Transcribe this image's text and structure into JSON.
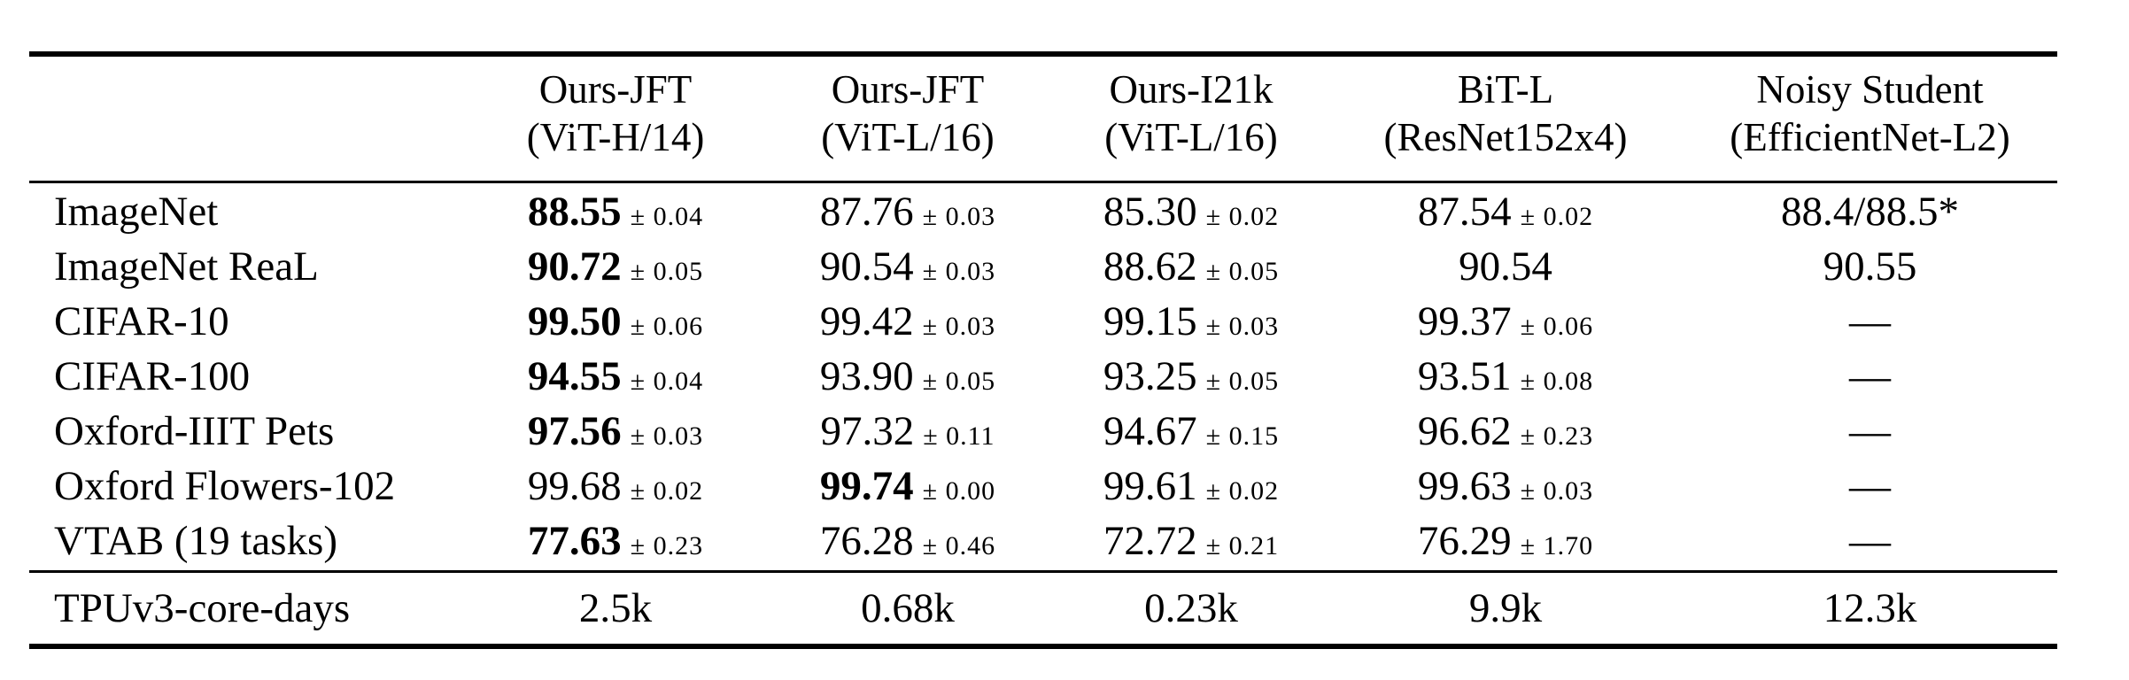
{
  "table": {
    "description": "Model comparison table of top-1 accuracy across benchmarks",
    "header": {
      "columns": [
        {
          "line1": "Ours-JFT",
          "line2": "(ViT-H/14)"
        },
        {
          "line1": "Ours-JFT",
          "line2": "(ViT-L/16)"
        },
        {
          "line1": "Ours-I21k",
          "line2": "(ViT-L/16)"
        },
        {
          "line1": "BiT-L",
          "line2": "(ResNet152x4)"
        },
        {
          "line1": "Noisy Student",
          "line2": "(EfficientNet-L2)"
        }
      ]
    },
    "rows": [
      {
        "label": "ImageNet",
        "cells": [
          {
            "main": "88.55",
            "err": "± 0.04"
          },
          {
            "main": "87.76",
            "err": "± 0.03"
          },
          {
            "main": "85.30",
            "err": "± 0.02"
          },
          {
            "main": "87.54",
            "err": "± 0.02"
          },
          {
            "main": "88.4/88.5*",
            "err": ""
          }
        ]
      },
      {
        "label": "ImageNet ReaL",
        "cells": [
          {
            "main": "90.72",
            "err": "± 0.05"
          },
          {
            "main": "90.54",
            "err": "± 0.03"
          },
          {
            "main": "88.62",
            "err": "± 0.05"
          },
          {
            "main": "90.54",
            "err": ""
          },
          {
            "main": "90.55",
            "err": ""
          }
        ]
      },
      {
        "label": "CIFAR-10",
        "cells": [
          {
            "main": "99.50",
            "err": "± 0.06"
          },
          {
            "main": "99.42",
            "err": "± 0.03"
          },
          {
            "main": "99.15",
            "err": "± 0.03"
          },
          {
            "main": "99.37",
            "err": "± 0.06"
          },
          {
            "main": "—",
            "err": ""
          }
        ]
      },
      {
        "label": "CIFAR-100",
        "cells": [
          {
            "main": "94.55",
            "err": "± 0.04"
          },
          {
            "main": "93.90",
            "err": "± 0.05"
          },
          {
            "main": "93.25",
            "err": "± 0.05"
          },
          {
            "main": "93.51",
            "err": "± 0.08"
          },
          {
            "main": "—",
            "err": ""
          }
        ]
      },
      {
        "label": "Oxford-IIIT Pets",
        "cells": [
          {
            "main": "97.56",
            "err": "± 0.03"
          },
          {
            "main": "97.32",
            "err": "± 0.11"
          },
          {
            "main": "94.67",
            "err": "± 0.15"
          },
          {
            "main": "96.62",
            "err": "± 0.23"
          },
          {
            "main": "—",
            "err": ""
          }
        ]
      },
      {
        "label": "Oxford Flowers-102",
        "cells": [
          {
            "main": "99.68",
            "err": "± 0.02"
          },
          {
            "main": "99.74",
            "err": "± 0.00"
          },
          {
            "main": "99.61",
            "err": "± 0.02"
          },
          {
            "main": "99.63",
            "err": "± 0.03"
          },
          {
            "main": "—",
            "err": ""
          }
        ]
      },
      {
        "label": "VTAB (19 tasks)",
        "cells": [
          {
            "main": "77.63",
            "err": "± 0.23"
          },
          {
            "main": "76.28",
            "err": "± 0.46"
          },
          {
            "main": "72.72",
            "err": "± 0.21"
          },
          {
            "main": "76.29",
            "err": "± 1.70"
          },
          {
            "main": "—",
            "err": ""
          }
        ]
      },
      {
        "label": "TPUv3-core-days",
        "cells": [
          {
            "main": "2.5k",
            "err": ""
          },
          {
            "main": "0.68k",
            "err": ""
          },
          {
            "main": "0.23k",
            "err": ""
          },
          {
            "main": "9.9k",
            "err": ""
          },
          {
            "main": "12.3k",
            "err": ""
          }
        ]
      }
    ]
  }
}
